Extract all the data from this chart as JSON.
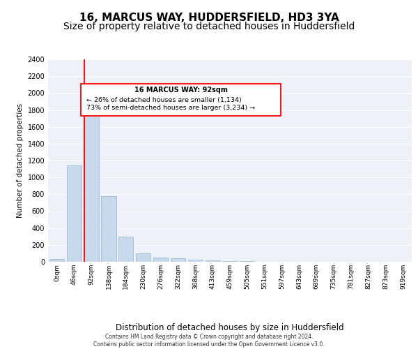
{
  "title": "16, MARCUS WAY, HUDDERSFIELD, HD3 3YA",
  "subtitle": "Size of property relative to detached houses in Huddersfield",
  "xlabel": "Distribution of detached houses by size in Huddersfield",
  "ylabel": "Number of detached properties",
  "footer_line1": "Contains HM Land Registry data © Crown copyright and database right 2024.",
  "footer_line2": "Contains public sector information licensed under the Open Government Licence v3.0.",
  "bin_labels": [
    "0sqm",
    "46sqm",
    "92sqm",
    "138sqm",
    "184sqm",
    "230sqm",
    "276sqm",
    "322sqm",
    "368sqm",
    "413sqm",
    "459sqm",
    "505sqm",
    "551sqm",
    "597sqm",
    "643sqm",
    "689sqm",
    "735sqm",
    "781sqm",
    "827sqm",
    "873sqm",
    "919sqm"
  ],
  "bar_values": [
    30,
    1140,
    1970,
    780,
    300,
    100,
    50,
    40,
    25,
    20,
    10,
    5,
    2,
    0,
    0,
    0,
    0,
    0,
    0,
    0,
    0
  ],
  "bar_color": "#c9d9ec",
  "bar_edge_color": "#8fb4d4",
  "red_line_bin": 2,
  "annotation_title": "16 MARCUS WAY: 92sqm",
  "annotation_line1": "← 26% of detached houses are smaller (1,134)",
  "annotation_line2": "73% of semi-detached houses are larger (3,234) →",
  "ylim": [
    0,
    2400
  ],
  "yticks": [
    0,
    200,
    400,
    600,
    800,
    1000,
    1200,
    1400,
    1600,
    1800,
    2000,
    2200,
    2400
  ],
  "bg_color": "#edf1f8",
  "grid_color": "#ffffff",
  "title_fontsize": 11,
  "subtitle_fontsize": 10
}
